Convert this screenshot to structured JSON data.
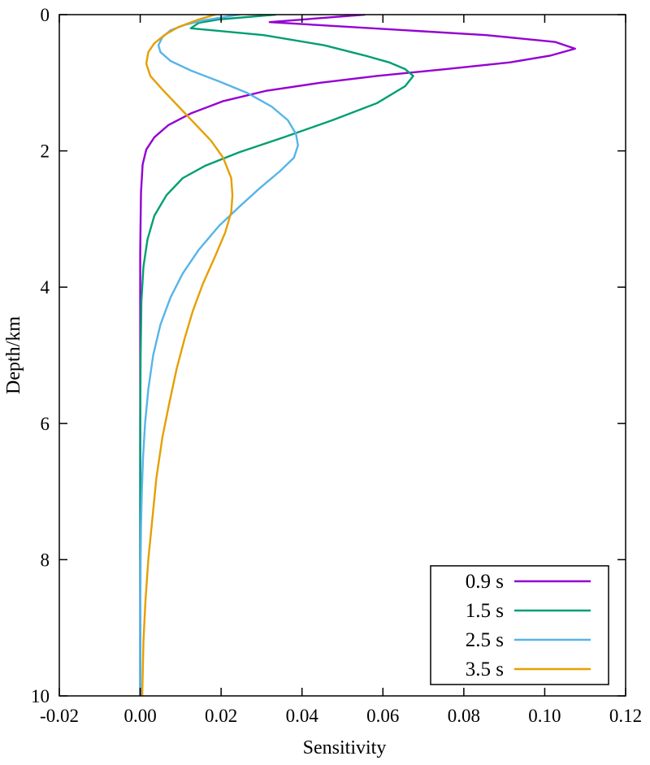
{
  "chart_data": {
    "type": "line",
    "title": "",
    "xlabel": "Sensitivity",
    "ylabel": "Depth/km",
    "xlim": [
      -0.02,
      0.12
    ],
    "ylim": [
      0,
      10
    ],
    "y_inverted": true,
    "grid": false,
    "legend_position": "bottom-right",
    "x_ticks": [
      "-0.02",
      "0.00",
      "0.02",
      "0.04",
      "0.06",
      "0.08",
      "0.10",
      "0.12"
    ],
    "x_tick_values": [
      -0.02,
      0.0,
      0.02,
      0.04,
      0.06,
      0.08,
      0.1,
      0.12
    ],
    "y_ticks": [
      "0",
      "2",
      "4",
      "6",
      "8",
      "10"
    ],
    "y_tick_values": [
      0,
      2,
      4,
      6,
      8,
      10
    ],
    "series": [
      {
        "name": "0.9 s",
        "color": "#9400D3",
        "points": [
          [
            0.0555,
            0.0
          ],
          [
            0.032,
            0.11
          ],
          [
            0.0855,
            0.3
          ],
          [
            0.1025,
            0.4
          ],
          [
            0.1075,
            0.5
          ],
          [
            0.1015,
            0.6
          ],
          [
            0.0915,
            0.7
          ],
          [
            0.0755,
            0.8
          ],
          [
            0.0585,
            0.9
          ],
          [
            0.0445,
            1.0
          ],
          [
            0.031,
            1.12
          ],
          [
            0.0205,
            1.27
          ],
          [
            0.0125,
            1.45
          ],
          [
            0.007,
            1.62
          ],
          [
            0.0035,
            1.8
          ],
          [
            0.0015,
            1.98
          ],
          [
            0.0006,
            2.2
          ],
          [
            0.0002,
            2.6
          ],
          [
            0.0001,
            3.0
          ],
          [
            0.0,
            3.5
          ],
          [
            0.0,
            4.0
          ],
          [
            0.0,
            5.0
          ],
          [
            0.0,
            6.0
          ],
          [
            0.0,
            7.0
          ],
          [
            0.0,
            8.0
          ],
          [
            0.0,
            9.0
          ],
          [
            0.0,
            10.0
          ]
        ]
      },
      {
        "name": "1.5 s",
        "color": "#009E73",
        "points": [
          [
            0.0335,
            0.0
          ],
          [
            0.0195,
            0.07
          ],
          [
            0.0145,
            0.12
          ],
          [
            0.0125,
            0.2
          ],
          [
            0.0305,
            0.3
          ],
          [
            0.0455,
            0.45
          ],
          [
            0.0555,
            0.6
          ],
          [
            0.0615,
            0.7
          ],
          [
            0.0655,
            0.8
          ],
          [
            0.0675,
            0.9
          ],
          [
            0.0655,
            1.05
          ],
          [
            0.0585,
            1.3
          ],
          [
            0.0475,
            1.55
          ],
          [
            0.0355,
            1.8
          ],
          [
            0.0245,
            2.02
          ],
          [
            0.016,
            2.22
          ],
          [
            0.0105,
            2.4
          ],
          [
            0.0065,
            2.65
          ],
          [
            0.0035,
            2.95
          ],
          [
            0.0018,
            3.3
          ],
          [
            0.0008,
            3.7
          ],
          [
            0.0003,
            4.2
          ],
          [
            0.0001,
            5.0
          ],
          [
            0.0,
            6.0
          ],
          [
            0.0,
            7.0
          ],
          [
            0.0,
            8.0
          ],
          [
            0.0,
            9.0
          ],
          [
            0.0,
            10.0
          ]
        ]
      },
      {
        "name": "2.5 s",
        "color": "#56B4E9",
        "points": [
          [
            0.0245,
            0.0
          ],
          [
            0.016,
            0.08
          ],
          [
            0.011,
            0.15
          ],
          [
            0.0075,
            0.23
          ],
          [
            0.0055,
            0.33
          ],
          [
            0.0045,
            0.45
          ],
          [
            0.005,
            0.55
          ],
          [
            0.0075,
            0.68
          ],
          [
            0.0125,
            0.82
          ],
          [
            0.0195,
            0.98
          ],
          [
            0.0265,
            1.15
          ],
          [
            0.0325,
            1.35
          ],
          [
            0.0365,
            1.55
          ],
          [
            0.0385,
            1.75
          ],
          [
            0.039,
            1.92
          ],
          [
            0.038,
            2.1
          ],
          [
            0.0345,
            2.3
          ],
          [
            0.0295,
            2.55
          ],
          [
            0.0245,
            2.82
          ],
          [
            0.0195,
            3.1
          ],
          [
            0.0145,
            3.45
          ],
          [
            0.0105,
            3.8
          ],
          [
            0.0075,
            4.15
          ],
          [
            0.005,
            4.55
          ],
          [
            0.0032,
            5.0
          ],
          [
            0.002,
            5.5
          ],
          [
            0.0012,
            6.0
          ],
          [
            0.0007,
            6.5
          ],
          [
            0.0004,
            7.0
          ],
          [
            0.0002,
            7.5
          ],
          [
            0.0001,
            8.0
          ],
          [
            0.0,
            9.0
          ],
          [
            0.0,
            10.0
          ]
        ]
      },
      {
        "name": "3.5 s",
        "color": "#E69F00",
        "points": [
          [
            0.0185,
            0.0
          ],
          [
            0.014,
            0.08
          ],
          [
            0.0095,
            0.18
          ],
          [
            0.006,
            0.3
          ],
          [
            0.0035,
            0.42
          ],
          [
            0.002,
            0.55
          ],
          [
            0.0015,
            0.72
          ],
          [
            0.0025,
            0.9
          ],
          [
            0.0055,
            1.1
          ],
          [
            0.0095,
            1.35
          ],
          [
            0.0135,
            1.6
          ],
          [
            0.0175,
            1.85
          ],
          [
            0.0205,
            2.1
          ],
          [
            0.0225,
            2.4
          ],
          [
            0.0228,
            2.65
          ],
          [
            0.0225,
            2.9
          ],
          [
            0.021,
            3.2
          ],
          [
            0.0185,
            3.55
          ],
          [
            0.0155,
            3.95
          ],
          [
            0.013,
            4.35
          ],
          [
            0.011,
            4.75
          ],
          [
            0.009,
            5.2
          ],
          [
            0.0072,
            5.7
          ],
          [
            0.0055,
            6.2
          ],
          [
            0.004,
            6.8
          ],
          [
            0.003,
            7.4
          ],
          [
            0.002,
            8.0
          ],
          [
            0.0013,
            8.6
          ],
          [
            0.0008,
            9.2
          ],
          [
            0.0005,
            10.0
          ]
        ]
      }
    ]
  }
}
